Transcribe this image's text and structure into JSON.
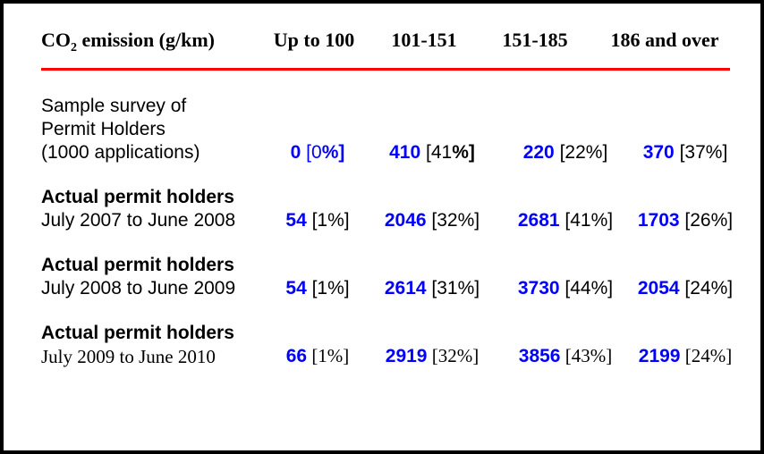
{
  "page": {
    "background": "#ffffff",
    "border_color": "#000000",
    "rule_color": "#ff0000",
    "value_color": "#0000ff",
    "text_color": "#000000"
  },
  "table": {
    "header": {
      "col0": {
        "pre": "CO",
        "sub": "2",
        "post": " emission (g/km)"
      },
      "columns": [
        "Up to 100",
        "101-151",
        "151-185",
        "186 and over"
      ]
    },
    "rows": [
      {
        "label_lines": [
          {
            "text": "Sample survey of"
          },
          {
            "text": "Permit Holders"
          },
          {
            "text": "(1000 applications)"
          }
        ],
        "cells": [
          [
            {
              "t": "0",
              "bold": true,
              "blue": true
            },
            {
              "t": " [0",
              "blue": true
            },
            {
              "t": "%]",
              "bold": true,
              "blue": true
            }
          ],
          [
            {
              "t": "410",
              "bold": true,
              "blue": true
            },
            {
              "t": " [41"
            },
            {
              "t": "%]",
              "bold": true
            }
          ],
          [
            {
              "t": "220",
              "bold": true,
              "blue": true
            },
            {
              "t": " [22%]"
            }
          ],
          [
            {
              "t": "370",
              "bold": true,
              "blue": true
            },
            {
              "t": " [37%]"
            }
          ]
        ]
      },
      {
        "label_lines": [
          {
            "text": "Actual permit holders",
            "bold": true
          },
          {
            "text": "July 2007 to June 2008"
          }
        ],
        "cells": [
          [
            {
              "t": "54",
              "bold": true,
              "blue": true
            },
            {
              "t": " [1%]"
            }
          ],
          [
            {
              "t": "2046",
              "bold": true,
              "blue": true
            },
            {
              "t": " [32%]"
            }
          ],
          [
            {
              "t": "2681",
              "bold": true,
              "blue": true
            },
            {
              "t": " [41%]"
            }
          ],
          [
            {
              "t": "1703",
              "bold": true,
              "blue": true
            },
            {
              "t": " [26%]"
            }
          ]
        ]
      },
      {
        "label_lines": [
          {
            "text": "Actual permit holders",
            "bold": true
          },
          {
            "text": "July 2008 to June 2009"
          }
        ],
        "cells": [
          [
            {
              "t": "54",
              "bold": true,
              "blue": true
            },
            {
              "t": " [1%]"
            }
          ],
          [
            {
              "t": "2614",
              "bold": true,
              "blue": true
            },
            {
              "t": " [31%]"
            }
          ],
          [
            {
              "t": "3730",
              "bold": true,
              "blue": true
            },
            {
              "t": " [44%]"
            }
          ],
          [
            {
              "t": "2054",
              "bold": true,
              "blue": true
            },
            {
              "t": " [24%]"
            }
          ]
        ]
      },
      {
        "label_lines": [
          {
            "text": "Actual permit holders",
            "bold": true
          },
          {
            "text": "July 2009 to June 2010",
            "serif": true
          }
        ],
        "cells": [
          [
            {
              "t": "66",
              "bold": true,
              "blue": true
            },
            {
              "t": " [1%]",
              "serif": true
            }
          ],
          [
            {
              "t": "2919",
              "bold": true,
              "blue": true
            },
            {
              "t": " [32%]",
              "serif": true
            }
          ],
          [
            {
              "t": "3856",
              "bold": true,
              "blue": true
            },
            {
              "t": " [43%]",
              "serif": true
            }
          ],
          [
            {
              "t": "2199",
              "bold": true,
              "blue": true
            },
            {
              "t": " [24%]",
              "serif": true
            }
          ]
        ]
      }
    ]
  }
}
